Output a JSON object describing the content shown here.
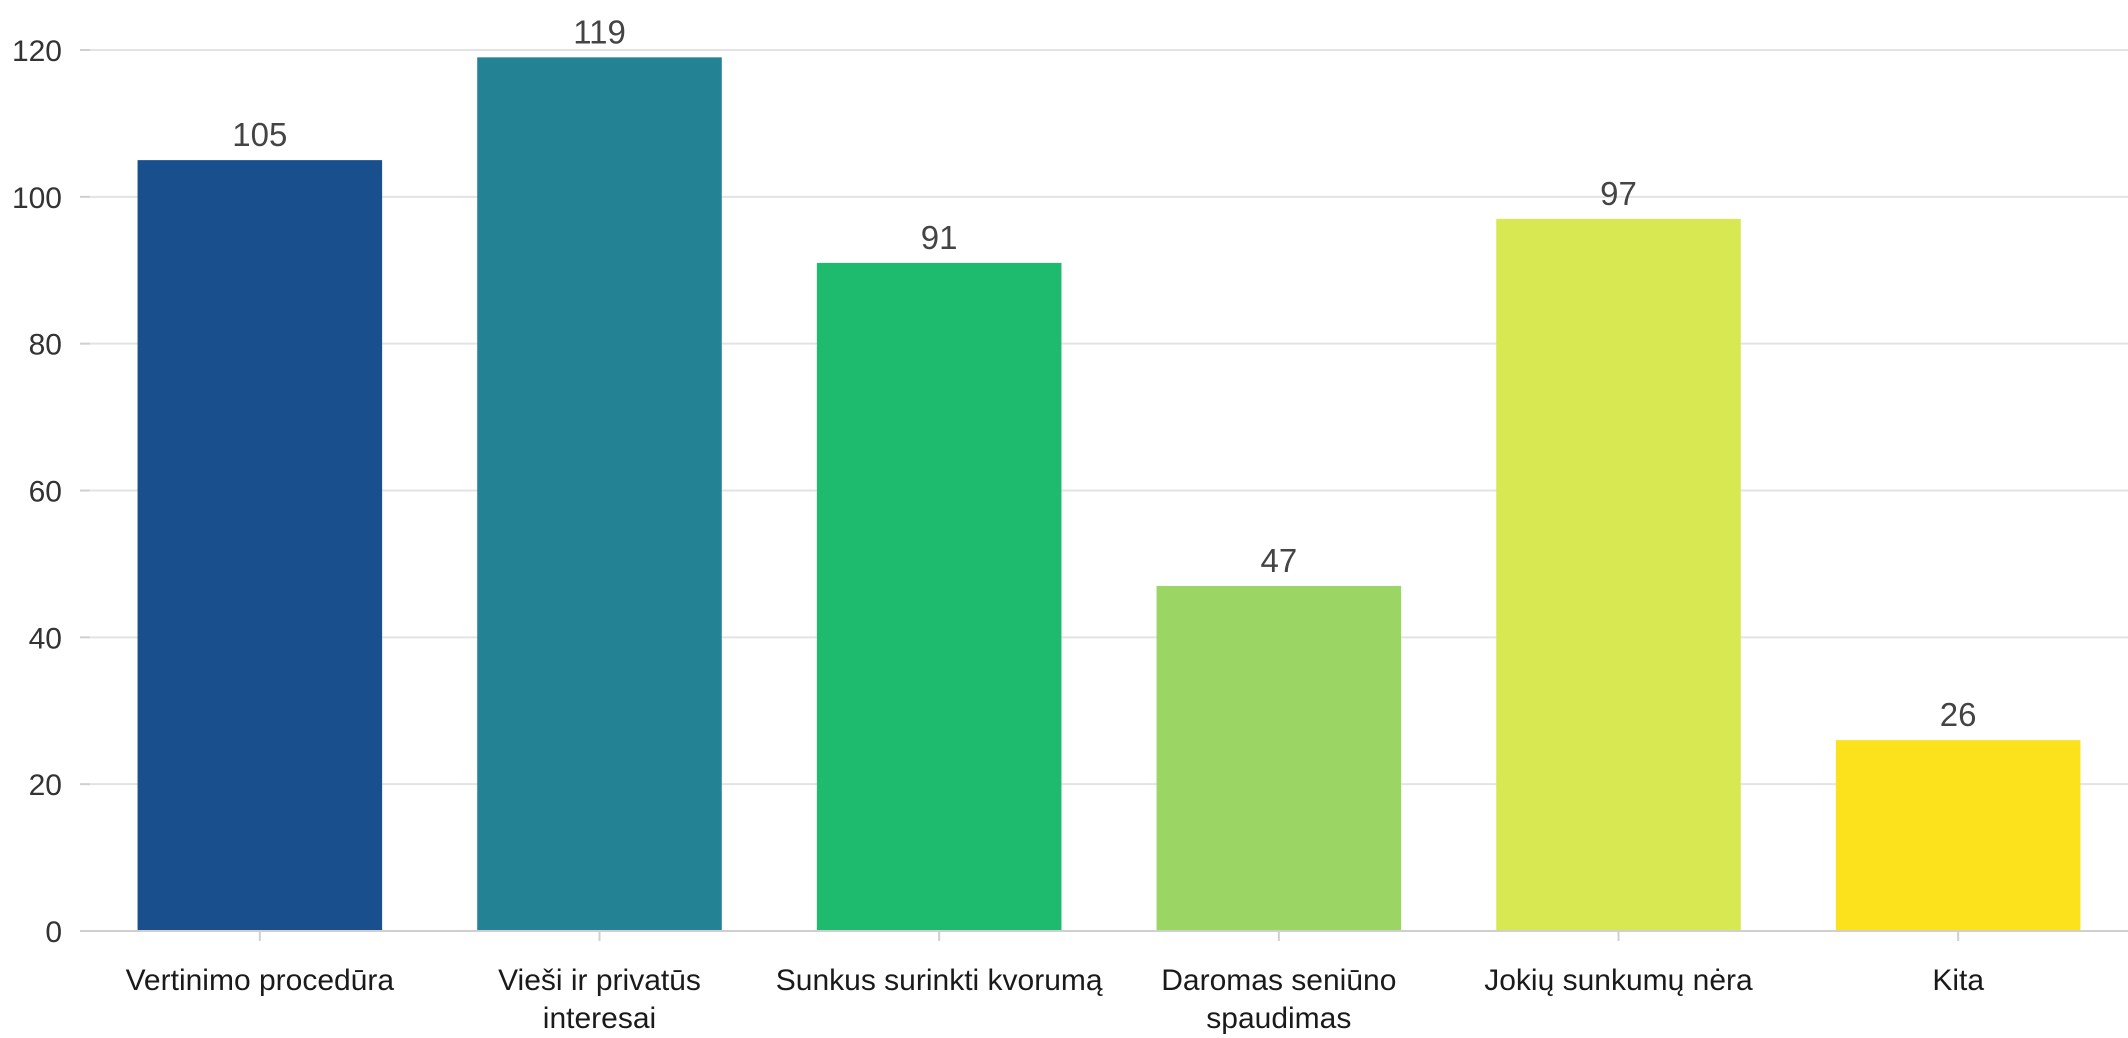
{
  "chart_data": {
    "type": "bar",
    "categories": [
      [
        "Vertinimo procedūra"
      ],
      [
        "Vieši ir privatūs",
        "interesai"
      ],
      [
        "Sunkus surinkti kvorumą"
      ],
      [
        "Daromas seniūno",
        "spaudimas"
      ],
      [
        "Jokių sunkumų nėra"
      ],
      [
        "Kita"
      ]
    ],
    "values": [
      105,
      119,
      91,
      47,
      97,
      26
    ],
    "data_labels": [
      "105",
      "119",
      "91",
      "47",
      "97",
      "26"
    ],
    "colors": [
      "#1a4f8e",
      "#238294",
      "#1eba6e",
      "#9bd665",
      "#d8e853",
      "#fce21d"
    ],
    "ylim": [
      0,
      120
    ],
    "yticks": [
      0,
      20,
      40,
      60,
      80,
      100,
      120
    ],
    "ytick_labels": [
      "0",
      "20",
      "40",
      "60",
      "80",
      "100",
      "120"
    ],
    "grid": true,
    "title": "",
    "xlabel": "",
    "ylabel": ""
  }
}
